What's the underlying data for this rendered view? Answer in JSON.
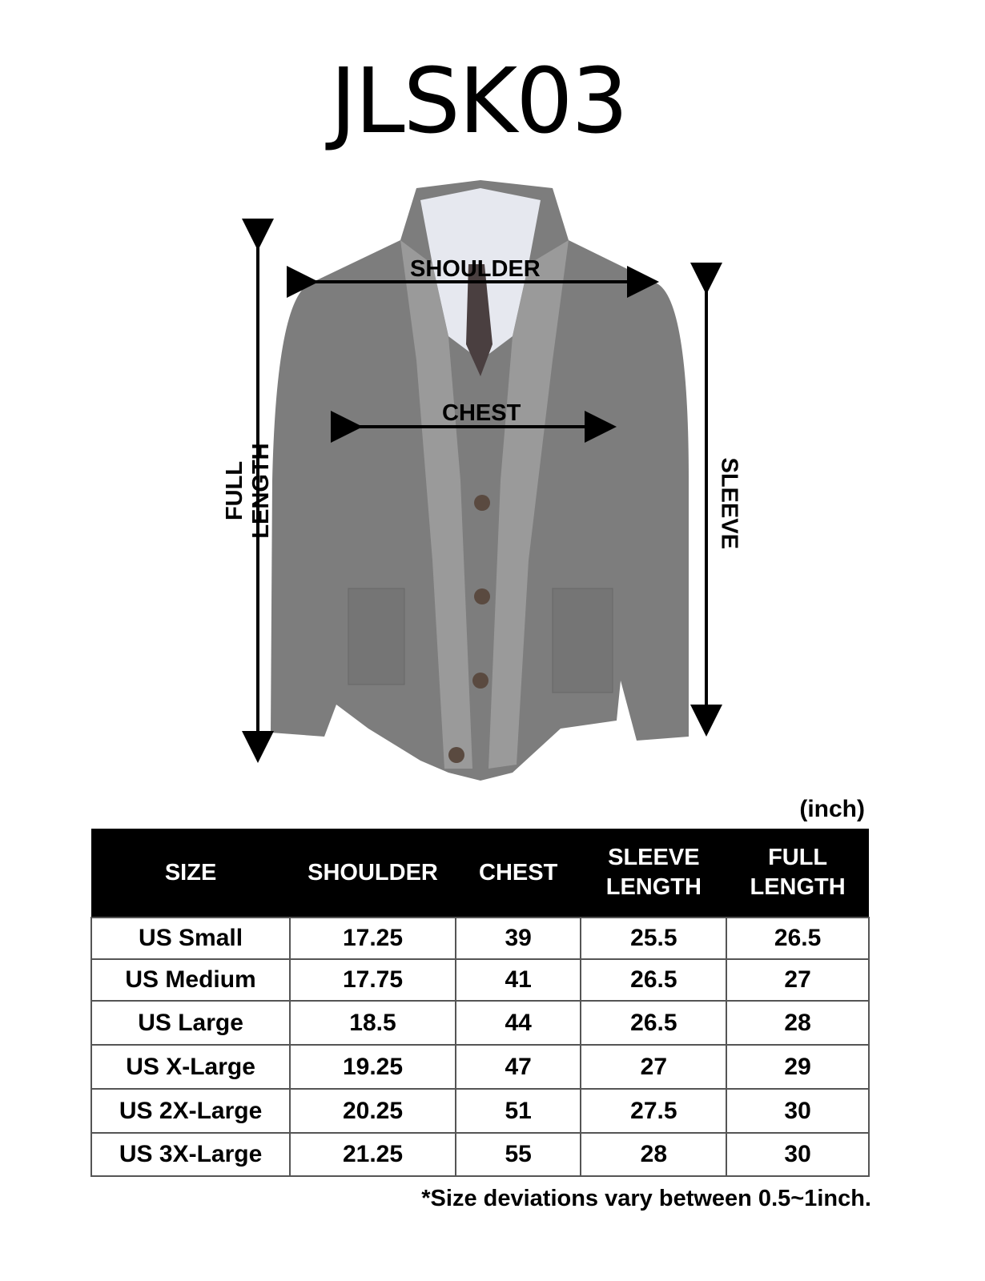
{
  "title": "JLSK03",
  "diagram_labels": {
    "shoulder": "SHOULDER",
    "chest": "CHEST",
    "full_length": "FULL LENGTH",
    "sleeve": "SLEEVE"
  },
  "unit": "(inch)",
  "table": {
    "headers": [
      "SIZE",
      "SHOULDER",
      "CHEST",
      "SLEEVE LENGTH",
      "FULL LENGTH"
    ],
    "rows": [
      [
        "US Small",
        "17.25",
        "39",
        "25.5",
        "26.5"
      ],
      [
        "US Medium",
        "17.75",
        "41",
        "26.5",
        "27"
      ],
      [
        "US Large",
        "18.5",
        "44",
        "26.5",
        "28"
      ],
      [
        "US X-Large",
        "19.25",
        "47",
        "27",
        "29"
      ],
      [
        "US 2X-Large",
        "20.25",
        "51",
        "27.5",
        "30"
      ],
      [
        "US 3X-Large",
        "21.25",
        "55",
        "28",
        "30"
      ]
    ]
  },
  "note": "*Size deviations vary between 0.5~1inch.",
  "colors": {
    "jacket": "#7d7d7d",
    "header_bg": "#000000"
  }
}
